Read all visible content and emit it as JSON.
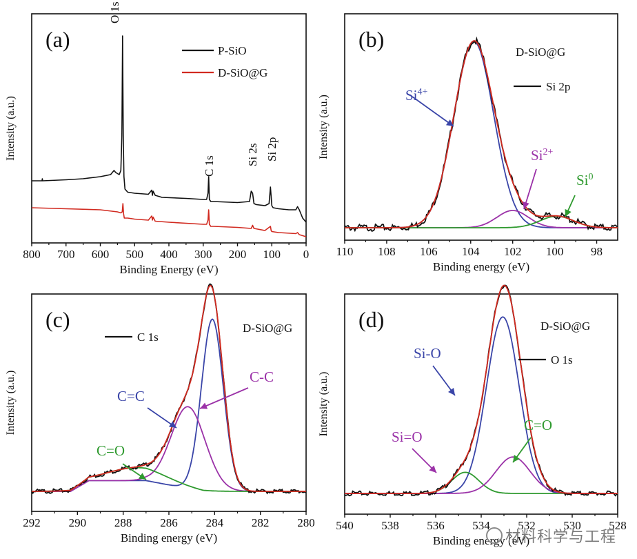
{
  "watermark": "材料科学与工程",
  "chart_data": [
    {
      "id": "a",
      "type": "line",
      "panel_label": "(a)",
      "xlabel": "Binding Energy (eV)",
      "ylabel": "Intensity (a.u.)",
      "xlim": [
        800,
        0
      ],
      "ylim": [
        0,
        1
      ],
      "xticks": [
        800,
        700,
        600,
        500,
        400,
        300,
        200,
        100,
        0
      ],
      "legend": [
        "P-SiO",
        "D-SiO@G"
      ],
      "peak_labels": [
        "O 1s",
        "C 1s",
        "Si 2s",
        "Si 2p"
      ],
      "series": [
        {
          "name": "P-SiO",
          "color": "#111111",
          "x": [
            800,
            770,
            769,
            768,
            700,
            650,
            600,
            570,
            560,
            555,
            545,
            540,
            537,
            535,
            533,
            531,
            528,
            520,
            500,
            460,
            450,
            448,
            446,
            440,
            420,
            350,
            300,
            290,
            286,
            284,
            282,
            278,
            270,
            200,
            165,
            160,
            156,
            152,
            145,
            120,
            108,
            104,
            100,
            96,
            80,
            50,
            30,
            25,
            20,
            10,
            0
          ],
          "y": [
            0.28,
            0.28,
            0.29,
            0.28,
            0.285,
            0.29,
            0.3,
            0.31,
            0.33,
            0.32,
            0.31,
            0.33,
            0.5,
            0.98,
            0.5,
            0.3,
            0.24,
            0.225,
            0.22,
            0.215,
            0.235,
            0.21,
            0.23,
            0.21,
            0.2,
            0.195,
            0.19,
            0.19,
            0.22,
            0.3,
            0.19,
            0.18,
            0.18,
            0.175,
            0.18,
            0.23,
            0.22,
            0.17,
            0.165,
            0.16,
            0.17,
            0.25,
            0.16,
            0.15,
            0.145,
            0.14,
            0.14,
            0.155,
            0.14,
            0.1,
            0.08
          ]
        },
        {
          "name": "D-SiO@G",
          "color": "#d12a20",
          "x": [
            800,
            700,
            600,
            550,
            540,
            536,
            534,
            532,
            530,
            520,
            500,
            460,
            450,
            448,
            446,
            440,
            400,
            300,
            290,
            286,
            284,
            282,
            278,
            270,
            200,
            160,
            156,
            152,
            120,
            104,
            102,
            100,
            80,
            30,
            25,
            20,
            0
          ],
          "y": [
            0.15,
            0.145,
            0.14,
            0.13,
            0.125,
            0.13,
            0.17,
            0.12,
            0.1,
            0.1,
            0.095,
            0.09,
            0.11,
            0.09,
            0.105,
            0.085,
            0.08,
            0.07,
            0.07,
            0.09,
            0.14,
            0.07,
            0.06,
            0.06,
            0.055,
            0.05,
            0.065,
            0.05,
            0.04,
            0.06,
            0.04,
            0.035,
            0.03,
            0.025,
            0.03,
            0.02,
            0.01
          ]
        }
      ]
    },
    {
      "id": "b",
      "type": "line",
      "panel_label": "(b)",
      "xlabel": "Binding energy (eV)",
      "ylabel": "Intensity (a.u.)",
      "xlim": [
        110,
        97
      ],
      "ylim": [
        0,
        1
      ],
      "xticks": [
        110,
        108,
        106,
        104,
        102,
        100,
        98
      ],
      "sample": "D-SiO@G",
      "legend": [
        "Si 2p"
      ],
      "components": [
        {
          "label": "Si4+",
          "base": "Si",
          "sup": "4+",
          "center": 103.85,
          "sigma": 0.95,
          "height": 0.97,
          "color": "#3a45a8"
        },
        {
          "label": "Si2+",
          "base": "Si",
          "sup": "2+",
          "center": 102.0,
          "sigma": 0.75,
          "height": 0.09,
          "color": "#9b32a8"
        },
        {
          "label": "Si0",
          "base": "Si",
          "sup": "0",
          "center": 99.9,
          "sigma": 0.8,
          "height": 0.06,
          "color": "#2f9a2f"
        }
      ]
    },
    {
      "id": "c",
      "type": "line",
      "panel_label": "(c)",
      "xlabel": "Binding energy (eV)",
      "ylabel": "Intensity (a.u.)",
      "xlim": [
        292,
        280
      ],
      "ylim": [
        0,
        1
      ],
      "xticks": [
        292,
        290,
        288,
        286,
        284,
        282,
        280
      ],
      "sample": "D-SiO@G",
      "legend": [
        "C 1s"
      ],
      "components": [
        {
          "label": "C=C",
          "center": 284.1,
          "sigma": 0.48,
          "height": 0.8,
          "color": "#3a45a8"
        },
        {
          "label": "C-C",
          "center": 285.15,
          "sigma": 0.75,
          "height": 0.38,
          "color": "#9b32a8"
        },
        {
          "label": "C=O",
          "center": 287.4,
          "sigma": 1.3,
          "height": 0.06,
          "color": "#2f9a2f"
        }
      ]
    },
    {
      "id": "d",
      "type": "line",
      "panel_label": "(d)",
      "xlabel": "Binding energy (eV)",
      "ylabel": "Intensity (a.u.)",
      "xlim": [
        540,
        528
      ],
      "ylim": [
        0,
        1
      ],
      "xticks": [
        540,
        538,
        536,
        534,
        532,
        530,
        528
      ],
      "sample": "D-SiO@G",
      "legend": [
        "O 1s"
      ],
      "components": [
        {
          "label": "Si-O",
          "center": 533.05,
          "sigma": 0.72,
          "height": 0.92,
          "color": "#3a45a8"
        },
        {
          "label": "C=O",
          "center": 534.7,
          "sigma": 0.6,
          "height": 0.11,
          "color": "#2f9a2f"
        },
        {
          "label": "Si=O",
          "center": 532.6,
          "sigma": 0.75,
          "height": 0.19,
          "color": "#9b32a8"
        }
      ]
    }
  ]
}
